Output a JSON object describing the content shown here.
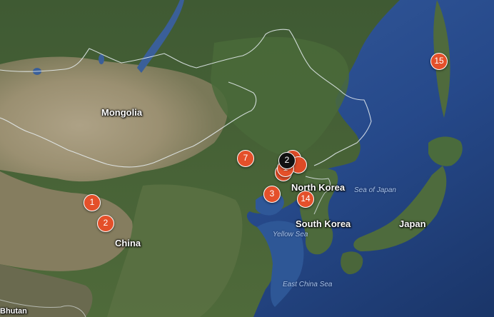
{
  "labels": {
    "mongolia": "Mongolia",
    "china": "China",
    "north_korea": "North Korea",
    "south_korea": "South Korea",
    "japan": "Japan",
    "bhutan": "Bhutan",
    "sea_of_japan": "Sea of Japan",
    "yellow_sea": "Yellow Sea",
    "east_china_sea": "East China Sea"
  },
  "markers": {
    "m1": "1",
    "m2": "2",
    "m3": "3",
    "m7": "7",
    "m14": "14",
    "m15": "15",
    "cluster": "2",
    "cluster_under": "1",
    "stack_a": "",
    "stack_b": "",
    "stack_c": ""
  },
  "colors": {
    "marker": "#e4502a",
    "cluster": "#111111",
    "label": "#ffffff",
    "water_label": "#a9c6ea"
  }
}
